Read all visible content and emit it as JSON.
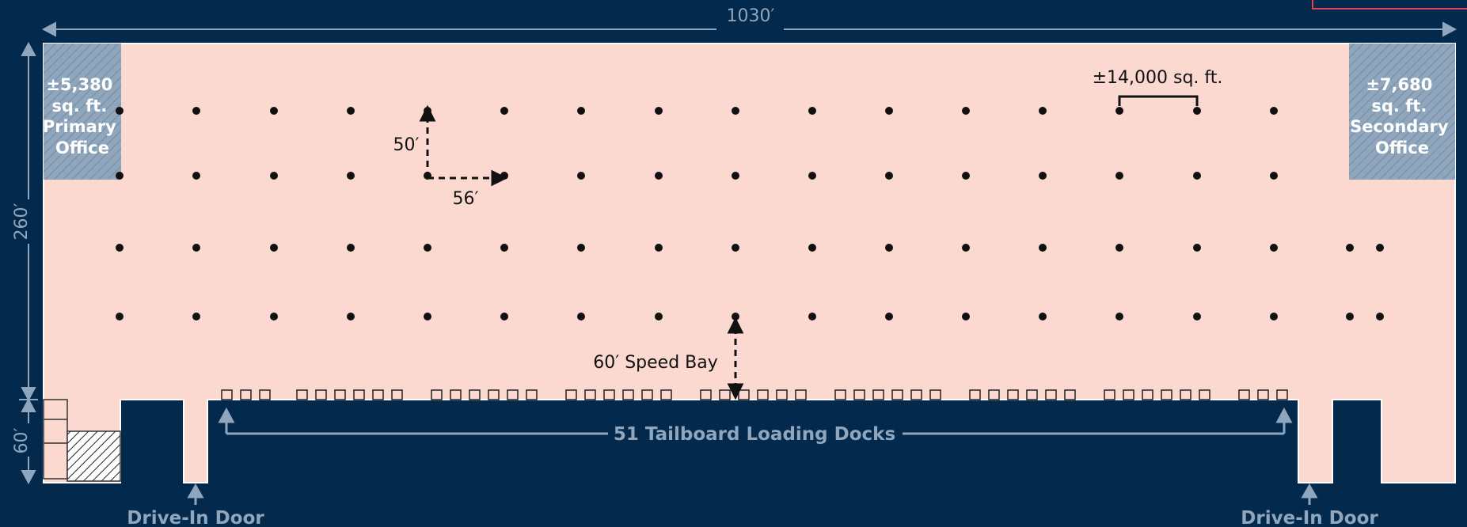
{
  "dimensions": {
    "width": "1030′",
    "depth": "260′",
    "truck_court": "60′"
  },
  "offices": {
    "primary": [
      "±5,380",
      "sq. ft.",
      "Primary",
      "Office"
    ],
    "secondary": [
      "±7,680",
      "sq. ft.",
      "Secondary",
      "Office"
    ]
  },
  "bay_spacing": {
    "vertical": "50′",
    "horizontal": "56′"
  },
  "module_label": "±14,000 sq. ft.",
  "speed_bay_label": "60′ Speed Bay",
  "docks_label": "51 Tailboard Loading Docks",
  "drive_in_labels": [
    "Drive-In Door",
    "Drive-In Door"
  ],
  "colors": {
    "background": "#03294d",
    "floor": "#fbd9d0",
    "office": "#8fa6bd",
    "dimension": "#8fa6bd",
    "marker": "#e8415a"
  }
}
